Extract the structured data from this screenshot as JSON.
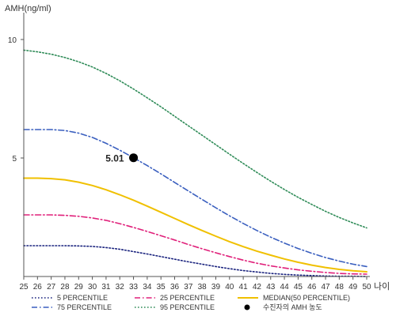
{
  "chart_data": {
    "type": "line",
    "ylabel": "AMH(ng/ml)",
    "xlabel": "나이",
    "xlim": [
      25,
      50
    ],
    "ylim": [
      0,
      11
    ],
    "x_ticks": [
      25,
      26,
      27,
      28,
      29,
      30,
      31,
      32,
      33,
      34,
      35,
      36,
      37,
      38,
      39,
      40,
      41,
      42,
      43,
      44,
      45,
      46,
      47,
      48,
      49,
      50
    ],
    "y_ticks": [
      5,
      10
    ],
    "grid": false,
    "legend_position": "bottom",
    "series": [
      {
        "name": "5 PERCENTILE",
        "color": "#1a237e",
        "style": "dotted",
        "points": [
          [
            25,
            1.3
          ],
          [
            26,
            1.3
          ],
          [
            27,
            1.3
          ],
          [
            28,
            1.3
          ],
          [
            29,
            1.29
          ],
          [
            30,
            1.27
          ],
          [
            31,
            1.22
          ],
          [
            32,
            1.15
          ],
          [
            33,
            1.05
          ],
          [
            34,
            0.95
          ],
          [
            35,
            0.84
          ],
          [
            36,
            0.73
          ],
          [
            37,
            0.62
          ],
          [
            38,
            0.52
          ],
          [
            39,
            0.42
          ],
          [
            40,
            0.33
          ],
          [
            41,
            0.25
          ],
          [
            42,
            0.19
          ],
          [
            43,
            0.13
          ],
          [
            44,
            0.09
          ],
          [
            45,
            0.06
          ],
          [
            46,
            0.04
          ],
          [
            47,
            0.02
          ],
          [
            48,
            0.01
          ],
          [
            49,
            0.01
          ],
          [
            50,
            0.0
          ]
        ]
      },
      {
        "name": "25 PERCENTILE",
        "color": "#e0207a",
        "style": "dash-dot",
        "points": [
          [
            25,
            2.6
          ],
          [
            26,
            2.6
          ],
          [
            27,
            2.6
          ],
          [
            28,
            2.58
          ],
          [
            29,
            2.54
          ],
          [
            30,
            2.47
          ],
          [
            31,
            2.37
          ],
          [
            32,
            2.23
          ],
          [
            33,
            2.07
          ],
          [
            34,
            1.9
          ],
          [
            35,
            1.72
          ],
          [
            36,
            1.54
          ],
          [
            37,
            1.35
          ],
          [
            38,
            1.17
          ],
          [
            39,
            1.0
          ],
          [
            40,
            0.84
          ],
          [
            41,
            0.69
          ],
          [
            42,
            0.56
          ],
          [
            43,
            0.45
          ],
          [
            44,
            0.36
          ],
          [
            45,
            0.28
          ],
          [
            46,
            0.22
          ],
          [
            47,
            0.17
          ],
          [
            48,
            0.13
          ],
          [
            49,
            0.11
          ],
          [
            50,
            0.1
          ]
        ]
      },
      {
        "name": "MEDIAN(50 PERCENTILE)",
        "color": "#f0c000",
        "style": "solid",
        "points": [
          [
            25,
            4.15
          ],
          [
            26,
            4.15
          ],
          [
            27,
            4.13
          ],
          [
            28,
            4.08
          ],
          [
            29,
            3.98
          ],
          [
            30,
            3.84
          ],
          [
            31,
            3.66
          ],
          [
            32,
            3.45
          ],
          [
            33,
            3.22
          ],
          [
            34,
            2.97
          ],
          [
            35,
            2.71
          ],
          [
            36,
            2.45
          ],
          [
            37,
            2.19
          ],
          [
            38,
            1.94
          ],
          [
            39,
            1.7
          ],
          [
            40,
            1.47
          ],
          [
            41,
            1.26
          ],
          [
            42,
            1.07
          ],
          [
            43,
            0.9
          ],
          [
            44,
            0.74
          ],
          [
            45,
            0.6
          ],
          [
            46,
            0.48
          ],
          [
            47,
            0.38
          ],
          [
            48,
            0.3
          ],
          [
            49,
            0.24
          ],
          [
            50,
            0.2
          ]
        ]
      },
      {
        "name": "75 PERCENTILE",
        "color": "#3a5fbf",
        "style": "dash-dot",
        "points": [
          [
            25,
            6.2
          ],
          [
            26,
            6.2
          ],
          [
            27,
            6.2
          ],
          [
            28,
            6.16
          ],
          [
            29,
            6.05
          ],
          [
            30,
            5.87
          ],
          [
            31,
            5.62
          ],
          [
            32,
            5.33
          ],
          [
            33,
            5.01
          ],
          [
            34,
            4.68
          ],
          [
            35,
            4.33
          ],
          [
            36,
            3.97
          ],
          [
            37,
            3.61
          ],
          [
            38,
            3.25
          ],
          [
            39,
            2.9
          ],
          [
            40,
            2.56
          ],
          [
            41,
            2.24
          ],
          [
            42,
            1.94
          ],
          [
            43,
            1.66
          ],
          [
            44,
            1.41
          ],
          [
            45,
            1.18
          ],
          [
            46,
            0.98
          ],
          [
            47,
            0.8
          ],
          [
            48,
            0.65
          ],
          [
            49,
            0.52
          ],
          [
            50,
            0.42
          ]
        ]
      },
      {
        "name": "95 PERCENTILE",
        "color": "#2e8b57",
        "style": "dotted",
        "points": [
          [
            25,
            9.55
          ],
          [
            26,
            9.48
          ],
          [
            27,
            9.38
          ],
          [
            28,
            9.24
          ],
          [
            29,
            9.06
          ],
          [
            30,
            8.84
          ],
          [
            31,
            8.57
          ],
          [
            32,
            8.26
          ],
          [
            33,
            7.91
          ],
          [
            34,
            7.54
          ],
          [
            35,
            7.16
          ],
          [
            36,
            6.76
          ],
          [
            37,
            6.36
          ],
          [
            38,
            5.96
          ],
          [
            39,
            5.56
          ],
          [
            40,
            5.16
          ],
          [
            41,
            4.77
          ],
          [
            42,
            4.39
          ],
          [
            43,
            4.02
          ],
          [
            44,
            3.67
          ],
          [
            45,
            3.34
          ],
          [
            46,
            3.04
          ],
          [
            47,
            2.75
          ],
          [
            48,
            2.49
          ],
          [
            49,
            2.26
          ],
          [
            50,
            2.05
          ]
        ]
      }
    ],
    "marker": {
      "name": "수진자의 AMH 농도",
      "x": 33,
      "y": 5.01,
      "label": "5.01",
      "color": "#000000"
    }
  }
}
